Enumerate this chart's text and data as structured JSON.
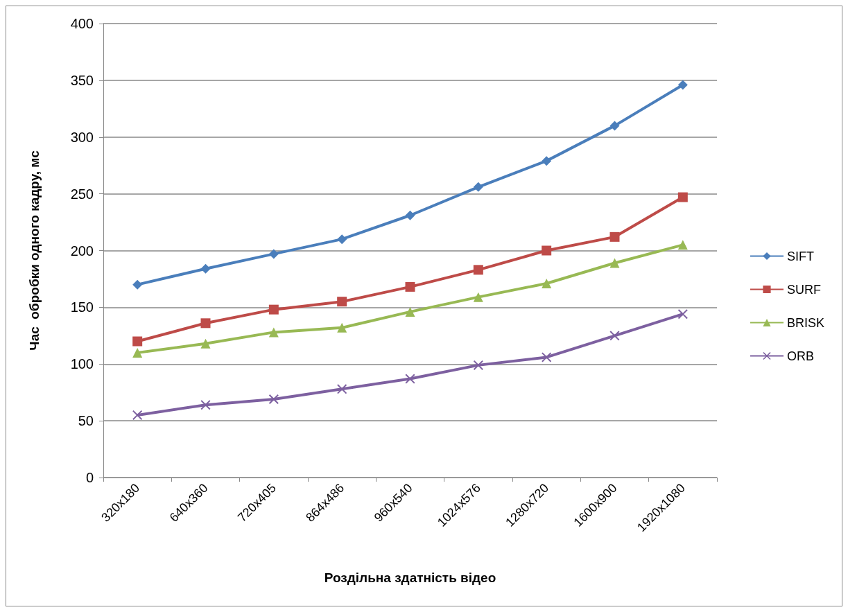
{
  "chart_data": {
    "type": "line",
    "xlabel": "Роздільна здатність відео",
    "ylabel": "Час  обробки одного кадру, мс",
    "categories": [
      "320x180",
      "640x360",
      "720x405",
      "864x486",
      "960x540",
      "1024x576",
      "1280x720",
      "1600x900",
      "1920x1080"
    ],
    "series": [
      {
        "name": "SIFT",
        "color": "#4a7ebb",
        "marker": "diamond",
        "values": [
          170,
          184,
          197,
          210,
          231,
          256,
          279,
          310,
          346
        ]
      },
      {
        "name": "SURF",
        "color": "#be4b48",
        "marker": "square",
        "values": [
          120,
          136,
          148,
          155,
          168,
          183,
          200,
          212,
          247
        ]
      },
      {
        "name": "BRISK",
        "color": "#98b954",
        "marker": "triangle",
        "values": [
          110,
          118,
          128,
          132,
          146,
          159,
          171,
          189,
          205
        ]
      },
      {
        "name": "ORB",
        "color": "#7d60a0",
        "marker": "cross",
        "values": [
          55,
          64,
          69,
          78,
          87,
          99,
          106,
          125,
          144
        ]
      }
    ],
    "ylim": [
      0,
      400
    ],
    "yticks": [
      0,
      50,
      100,
      150,
      200,
      250,
      300,
      350,
      400
    ],
    "grid": "y",
    "legend": "right",
    "line_style": "solid"
  }
}
